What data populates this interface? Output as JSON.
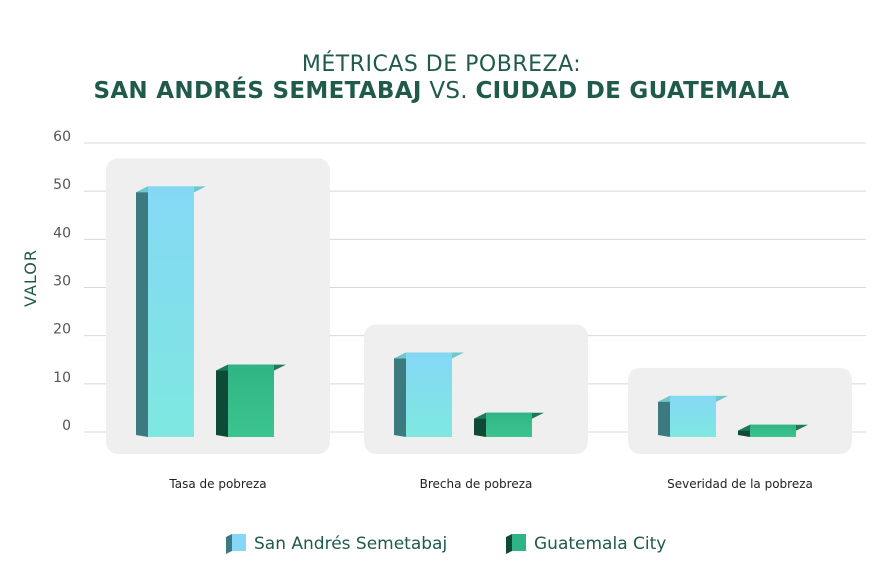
{
  "title_line1": "MÉTRICAS DE POBREZA:",
  "title_line2_a": "SAN ANDRÉS SEMETABAJ",
  "title_line2_vs": " VS. ",
  "title_line2_b": "CIUDAD DE GUATEMALA",
  "colors": {
    "title": "#1f5a4b",
    "series1_front": "#84d8f5",
    "series1_side": "#3d7a80",
    "series1_top": "#6dc9cf",
    "series2_front": "#2fb584",
    "series2_side": "#0f4a37",
    "series2_top": "#1c7a58",
    "group_bg": "#efefef",
    "grid": "#d8d8d8",
    "tick": "#555555"
  },
  "chart_data": {
    "type": "bar",
    "ylabel": "VALOR",
    "ylim": [
      0,
      60
    ],
    "yticks": [
      0,
      10,
      20,
      30,
      40,
      50,
      60
    ],
    "grid": true,
    "legend_position": "bottom",
    "categories": [
      "Tasa de pobreza",
      "Brecha de pobreza",
      "Severidad de la pobreza"
    ],
    "series": [
      {
        "name": "San Andrés Semetabaj",
        "values": [
          51,
          16.5,
          7.5
        ]
      },
      {
        "name": "Guatemala City",
        "values": [
          14,
          4,
          1.5
        ]
      }
    ]
  }
}
